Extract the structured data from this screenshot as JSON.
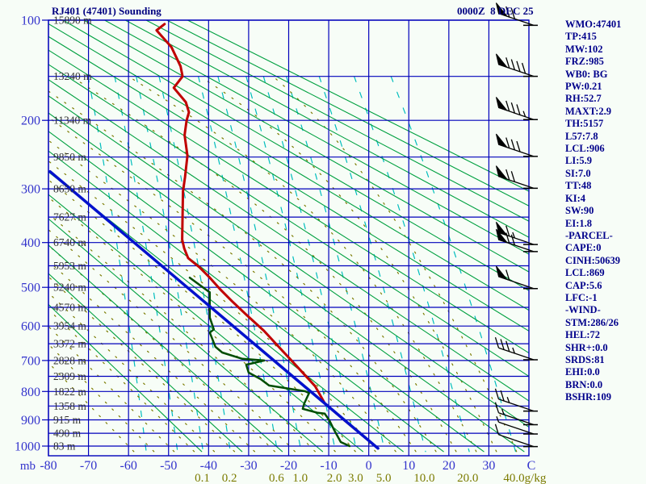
{
  "header": {
    "title": "RJ401 (47401) Sounding",
    "timestamp": "0000Z  8 DEC 25"
  },
  "panel": {
    "lines": [
      "WMO:47401",
      "TP:415",
      "MW:102",
      "FRZ:985",
      "WB0: BG",
      "PW:0.21",
      "RH:52.7",
      "MAXT:2.9",
      "TH:5157",
      "L57:7.8",
      "LCL:906",
      "LI:5.9",
      "SI:7.0",
      "TT:48",
      "KI:4",
      "SW:90",
      "EI:1.8",
      "-PARCEL-",
      "CAPE:0",
      "CINH:50639",
      "LCL:869",
      "CAP:5.6",
      "LFC:-1",
      "-WIND-",
      "STM:286/26",
      "HEL:72",
      "SHR+:0.0",
      "SRDS:81",
      "EHI:0.0",
      "BRN:0.0",
      "BSHR:109"
    ]
  },
  "chart_data": {
    "type": "line",
    "diagram": "stuve-sounding",
    "title": "RJ401 (47401) Sounding",
    "pressure_axis": {
      "label": "mb",
      "tick_labels": [
        100,
        200,
        300,
        400,
        500,
        600,
        700,
        800,
        900,
        1000
      ],
      "gridline_levels_mb": [
        100,
        150,
        200,
        250,
        300,
        350,
        400,
        450,
        500,
        550,
        600,
        650,
        700,
        750,
        800,
        850,
        900,
        950,
        1000
      ],
      "range": [
        100,
        1023
      ]
    },
    "temperature_axis": {
      "label": "C",
      "tick_labels": [
        -80,
        -70,
        -60,
        -50,
        -40,
        -30,
        -20,
        -10,
        0,
        10,
        20,
        30
      ],
      "range": [
        -80,
        40
      ]
    },
    "height_labels": {
      "pressures_mb": [
        100,
        150,
        200,
        250,
        300,
        350,
        400,
        450,
        500,
        550,
        600,
        650,
        700,
        750,
        800,
        850,
        900,
        950,
        1000
      ],
      "text": [
        "15890 m",
        "13240 m",
        "11340 m",
        "9850 m",
        "8650 m",
        "7627 m",
        "6740 m",
        "5953 m",
        "5240 m",
        "4570 m",
        "3954 m",
        "3372 m",
        "2828 m",
        "2309 m",
        "1822 m",
        "1358 m",
        "915 m",
        "490 m",
        "83 m"
      ]
    },
    "mixing_ratio": {
      "axis_label": "g/kg",
      "labeled_lines_gkg": [
        0.1,
        0.2,
        0.6,
        1.0,
        2.0,
        3.0,
        5.0,
        10.0,
        20.0,
        40.0
      ],
      "unlabeled_lines_gkg": [
        0.02,
        0.05
      ]
    },
    "dry_adiabats_theta_K": {
      "start": 230,
      "end": 440,
      "step": 10
    },
    "moist_adiabats_thetaw_C": {
      "start": -60,
      "end": 35,
      "step": 5
    },
    "series": [
      {
        "name": "temperature",
        "color": "#c00000",
        "width": 3,
        "points_T_p": [
          [
            -51,
            103
          ],
          [
            -53,
            108
          ],
          [
            -49.3,
            122
          ],
          [
            -47,
            140
          ],
          [
            -46.5,
            150
          ],
          [
            -48.7,
            162
          ],
          [
            -45.7,
            178
          ],
          [
            -44.9,
            190
          ],
          [
            -45.5,
            200
          ],
          [
            -46,
            219
          ],
          [
            -45.3,
            248
          ],
          [
            -45.9,
            281
          ],
          [
            -46.4,
            304
          ],
          [
            -46.6,
            394
          ],
          [
            -46.1,
            412
          ],
          [
            -45.1,
            433
          ],
          [
            -42.3,
            453
          ],
          [
            -39.7,
            477
          ],
          [
            -37,
            506
          ],
          [
            -34.2,
            534
          ],
          [
            -30.5,
            570
          ],
          [
            -26.2,
            613
          ],
          [
            -22.1,
            664
          ],
          [
            -18.1,
            716
          ],
          [
            -13.4,
            782
          ],
          [
            -11,
            840
          ],
          [
            -6.2,
            900
          ],
          [
            -1.4,
            960
          ],
          [
            2,
            1005
          ]
        ]
      },
      {
        "name": "dewpoint",
        "color": "#004d00",
        "width": 2.5,
        "points_T_p": [
          [
            -44.7,
            477
          ],
          [
            -40.3,
            508
          ],
          [
            -39.7,
            512
          ],
          [
            -39.7,
            577
          ],
          [
            -38.7,
            609
          ],
          [
            -39.7,
            618
          ],
          [
            -38.3,
            659
          ],
          [
            -36.6,
            676
          ],
          [
            -31.6,
            695
          ],
          [
            -26.1,
            700
          ],
          [
            -30.6,
            713
          ],
          [
            -30,
            738
          ],
          [
            -27,
            759
          ],
          [
            -24.9,
            780
          ],
          [
            -15.9,
            799
          ],
          [
            -14.9,
            805
          ],
          [
            -16.1,
            841
          ],
          [
            -16.5,
            860
          ],
          [
            -12.9,
            874
          ],
          [
            -11,
            877
          ],
          [
            -9.8,
            903
          ],
          [
            -8.7,
            936
          ],
          [
            -7,
            984
          ],
          [
            -4.8,
            1000
          ]
        ]
      },
      {
        "name": "parcel_dry_adiabat",
        "color": "#0011cc",
        "width": 3.5,
        "points_T_p": [
          [
            -79.6,
            272
          ],
          [
            2.3,
            1009
          ]
        ]
      }
    ],
    "wind_barbs": [
      {
        "p": 104,
        "flag": 1,
        "full": 2,
        "half": 0
      },
      {
        "p": 150,
        "flag": 1,
        "full": 4,
        "half": 0
      },
      {
        "p": 199,
        "flag": 1,
        "full": 3,
        "half": 1
      },
      {
        "p": 249,
        "flag": 1,
        "full": 3,
        "half": 0
      },
      {
        "p": 299,
        "flag": 1,
        "full": 2,
        "half": 0
      },
      {
        "p": 404,
        "flag": 1,
        "full": 1,
        "half": 1
      },
      {
        "p": 419,
        "flag": 1,
        "full": 2,
        "half": 0
      },
      {
        "p": 503,
        "flag": 1,
        "full": 1,
        "half": 0
      },
      {
        "p": 698,
        "flag": 0,
        "full": 3,
        "half": 1
      },
      {
        "p": 868,
        "flag": 0,
        "full": 2,
        "half": 1
      },
      {
        "p": 918,
        "flag": 0,
        "full": 1,
        "half": 1
      },
      {
        "p": 953,
        "flag": 0,
        "full": 0,
        "half": 1
      },
      {
        "p": 1002,
        "flag": 0,
        "full": 1,
        "half": 0
      }
    ],
    "colors": {
      "grid": "#0000bb",
      "dry_adiabat": "#00a040",
      "moist_adiabat": "#7b7b00",
      "mixing_ratio_line": "#00bdbd",
      "mixing_ratio_label": "#7b7b00",
      "axis_text_blue": "#3333cc",
      "height_text": "#333333",
      "barb": "#000000",
      "background": "#f7fdf7"
    }
  }
}
